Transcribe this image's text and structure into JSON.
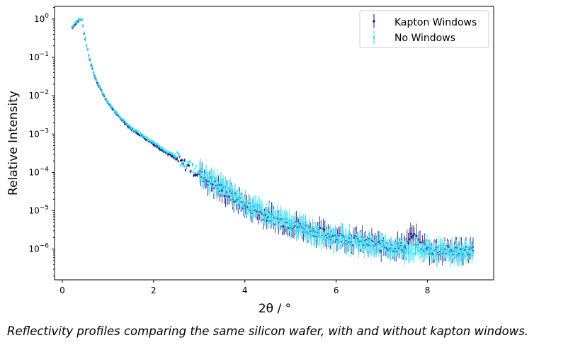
{
  "caption": "Reflectivity profiles comparing the same silicon wafer, with and without kapton windows.",
  "chart_data": {
    "type": "scatter",
    "xlabel": "2θ / °",
    "ylabel": "Relative Intensity",
    "xlim": [
      -0.17,
      9.45
    ],
    "ylim_log10": [
      -6.8,
      0.33
    ],
    "yscale": "log",
    "xticks": [
      0,
      2,
      4,
      6,
      8
    ],
    "yticks_exp": [
      0,
      -1,
      -2,
      -3,
      -4,
      -5,
      -6
    ],
    "grid": false,
    "legend_position": "top-right",
    "series": [
      {
        "name": "Kapton Windows",
        "color": "#1a0a6e",
        "marker": "point with vertical error bar",
        "x": [
          0.22,
          0.3,
          0.38,
          0.43,
          0.5,
          0.6,
          0.7,
          0.8,
          1.0,
          1.2,
          1.5,
          2.0,
          2.5,
          3.0,
          3.5,
          4.0,
          4.5,
          5.0,
          5.5,
          6.0,
          6.5,
          7.0,
          7.5,
          7.65,
          8.0,
          8.5,
          9.0
        ],
        "y": [
          0.6,
          0.8,
          0.97,
          0.95,
          0.3,
          0.09,
          0.035,
          0.018,
          0.0065,
          0.0032,
          0.0014,
          0.00055,
          0.00022,
          9e-05,
          3.5e-05,
          1.4e-05,
          7e-06,
          4.5e-06,
          3e-06,
          2.1e-06,
          1.6e-06,
          1.2e-06,
          1.1e-06,
          2.1e-06,
          9.5e-07,
          9e-07,
          9e-07
        ]
      },
      {
        "name": "No Windows",
        "color": "#22e5ff",
        "marker": "point with vertical error bar",
        "x": [
          0.22,
          0.3,
          0.38,
          0.43,
          0.5,
          0.6,
          0.7,
          0.8,
          1.0,
          1.2,
          1.5,
          2.0,
          2.5,
          3.0,
          3.5,
          4.0,
          4.5,
          5.0,
          5.5,
          6.0,
          6.5,
          7.0,
          7.5,
          8.0,
          8.5,
          9.0
        ],
        "y": [
          0.62,
          0.82,
          0.98,
          0.96,
          0.31,
          0.092,
          0.036,
          0.019,
          0.0068,
          0.0034,
          0.0015,
          0.0006,
          0.00025,
          0.0001,
          4e-05,
          1.6e-05,
          7.5e-06,
          4.5e-06,
          2.8e-06,
          2e-06,
          1.5e-06,
          1.2e-06,
          1e-06,
          9e-07,
          8.8e-07,
          8.5e-07
        ]
      }
    ]
  }
}
